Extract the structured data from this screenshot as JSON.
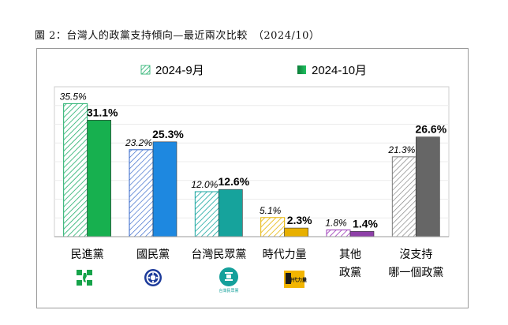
{
  "title": "圖 2：台灣人的政黨支持傾向—最近兩次比較　（2024/10）",
  "chart_data": {
    "type": "bar",
    "title": "圖 2：台灣人的政黨支持傾向—最近兩次比較　（2024/10）",
    "categories": [
      [
        "民進黨"
      ],
      [
        "國民黨"
      ],
      [
        "台灣民眾黨"
      ],
      [
        "時代力量"
      ],
      [
        "其他",
        "政黨"
      ],
      [
        "沒支持",
        "哪一個政黨"
      ]
    ],
    "series": [
      {
        "name": "2024-9月",
        "values": [
          35.5,
          23.2,
          12.0,
          5.1,
          1.8,
          21.3
        ],
        "value_labels": [
          "35.5%",
          "23.2%",
          "12.0%",
          "5.1%",
          "1.8%",
          "21.3%"
        ]
      },
      {
        "name": "2024-10月",
        "values": [
          31.1,
          25.3,
          12.6,
          2.3,
          1.4,
          26.6
        ],
        "value_labels": [
          "31.1%",
          "25.3%",
          "12.6%",
          "2.3%",
          "1.4%",
          "26.6%"
        ]
      }
    ],
    "colors": {
      "prev": [
        "#1fae6a",
        "#2f63c9",
        "#17a6a0",
        "#e6b400",
        "#9c38b8",
        "#7c7c7c"
      ],
      "cur": [
        "#17b04f",
        "#1e88e0",
        "#16a39c",
        "#e8b000",
        "#8e3fa8",
        "#666666"
      ]
    },
    "logos": [
      "dpp-logo-icon",
      "kmt-logo-icon",
      "tpp-logo-icon",
      "npp-logo-icon"
    ],
    "logo_text": {
      "tpp": "台灣民眾黨",
      "npp": "時代力量"
    },
    "ylim": [
      0,
      40
    ],
    "grid": true,
    "legend": "top-center"
  }
}
